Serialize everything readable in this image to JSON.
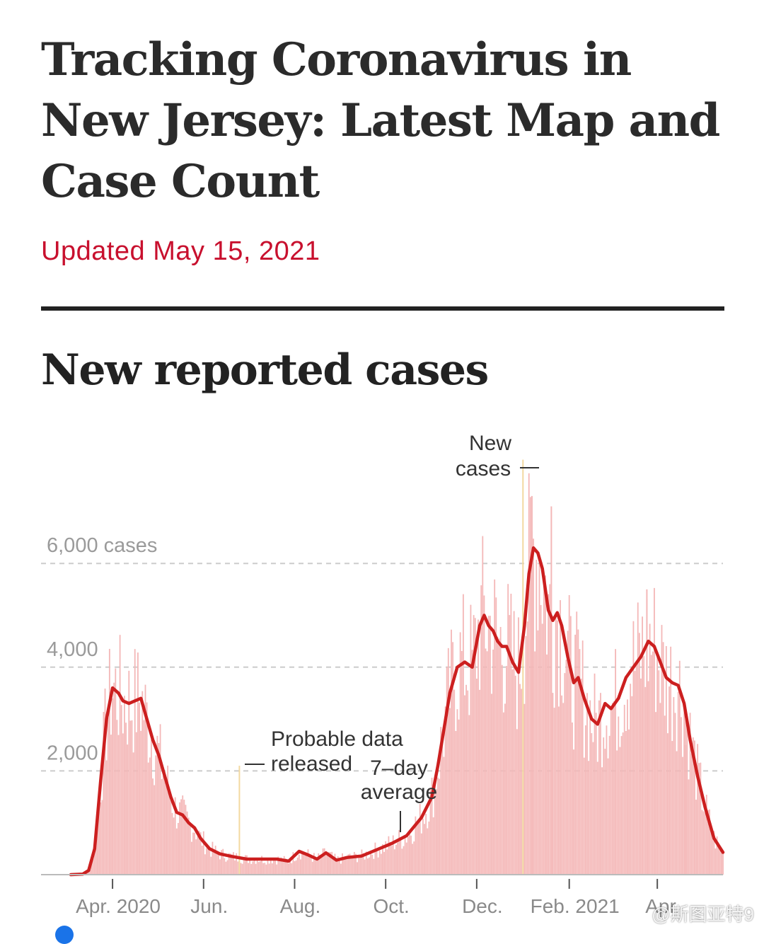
{
  "article": {
    "headline": "Tracking Coronavirus in New Jersey: Latest Map and Case Count",
    "updated": "Updated May 15, 2021"
  },
  "section": {
    "title": "New reported cases"
  },
  "watermark": "@斯图亚特9",
  "colors": {
    "headline": "#2b2b2b",
    "updated": "#c8102e",
    "average_line": "#cc1f1f",
    "bars": "#f4b7b7",
    "probable_marker": "#f2d9a0",
    "grid": "#cccccc",
    "tick_label": "#888888"
  },
  "chart_data": {
    "type": "bar",
    "title": "New reported cases",
    "y_unit_label": "cases",
    "ylim": [
      0,
      6500
    ],
    "y_ticks": [
      {
        "value": 2000,
        "label": "2,000"
      },
      {
        "value": 4000,
        "label": "4,000"
      },
      {
        "value": 6000,
        "label": "6,000 cases"
      }
    ],
    "x_ticks": [
      {
        "date": "2020-04-01",
        "label": "Apr. 2020"
      },
      {
        "date": "2020-06-01",
        "label": "Jun."
      },
      {
        "date": "2020-08-01",
        "label": "Aug."
      },
      {
        "date": "2020-10-01",
        "label": "Oct."
      },
      {
        "date": "2020-12-01",
        "label": "Dec."
      },
      {
        "date": "2021-02-01",
        "label": "Feb. 2021"
      },
      {
        "date": "2021-04-01",
        "label": "Apr."
      }
    ],
    "date_range": [
      "2020-03-04",
      "2021-05-15"
    ],
    "grid": true,
    "series": [
      {
        "name": "7-day average",
        "style": "line",
        "points": [
          [
            "2020-03-04",
            0
          ],
          [
            "2020-03-12",
            10
          ],
          [
            "2020-03-16",
            80
          ],
          [
            "2020-03-20",
            500
          ],
          [
            "2020-03-24",
            1800
          ],
          [
            "2020-03-28",
            3000
          ],
          [
            "2020-04-01",
            3600
          ],
          [
            "2020-04-05",
            3500
          ],
          [
            "2020-04-08",
            3350
          ],
          [
            "2020-04-12",
            3300
          ],
          [
            "2020-04-16",
            3350
          ],
          [
            "2020-04-20",
            3400
          ],
          [
            "2020-04-24",
            3000
          ],
          [
            "2020-04-28",
            2600
          ],
          [
            "2020-05-02",
            2300
          ],
          [
            "2020-05-06",
            1900
          ],
          [
            "2020-05-10",
            1500
          ],
          [
            "2020-05-14",
            1200
          ],
          [
            "2020-05-18",
            1150
          ],
          [
            "2020-05-22",
            1000
          ],
          [
            "2020-05-26",
            900
          ],
          [
            "2020-05-30",
            700
          ],
          [
            "2020-06-05",
            500
          ],
          [
            "2020-06-12",
            400
          ],
          [
            "2020-06-20",
            350
          ],
          [
            "2020-06-30",
            300
          ],
          [
            "2020-07-10",
            300
          ],
          [
            "2020-07-20",
            300
          ],
          [
            "2020-07-28",
            260
          ],
          [
            "2020-08-04",
            450
          ],
          [
            "2020-08-10",
            380
          ],
          [
            "2020-08-16",
            300
          ],
          [
            "2020-08-22",
            420
          ],
          [
            "2020-08-29",
            280
          ],
          [
            "2020-09-05",
            330
          ],
          [
            "2020-09-15",
            360
          ],
          [
            "2020-09-25",
            480
          ],
          [
            "2020-10-05",
            600
          ],
          [
            "2020-10-15",
            750
          ],
          [
            "2020-10-25",
            1100
          ],
          [
            "2020-11-01",
            1500
          ],
          [
            "2020-11-05",
            2100
          ],
          [
            "2020-11-09",
            2800
          ],
          [
            "2020-11-13",
            3500
          ],
          [
            "2020-11-18",
            4000
          ],
          [
            "2020-11-23",
            4100
          ],
          [
            "2020-11-28",
            4000
          ],
          [
            "2020-12-03",
            4800
          ],
          [
            "2020-12-06",
            5000
          ],
          [
            "2020-12-09",
            4800
          ],
          [
            "2020-12-12",
            4700
          ],
          [
            "2020-12-15",
            4500
          ],
          [
            "2020-12-18",
            4400
          ],
          [
            "2020-12-21",
            4400
          ],
          [
            "2020-12-25",
            4100
          ],
          [
            "2020-12-29",
            3900
          ],
          [
            "2021-01-02",
            4800
          ],
          [
            "2021-01-05",
            5800
          ],
          [
            "2021-01-08",
            6300
          ],
          [
            "2021-01-11",
            6200
          ],
          [
            "2021-01-14",
            5900
          ],
          [
            "2021-01-18",
            5100
          ],
          [
            "2021-01-21",
            4900
          ],
          [
            "2021-01-24",
            5050
          ],
          [
            "2021-01-27",
            4800
          ],
          [
            "2021-01-31",
            4200
          ],
          [
            "2021-02-04",
            3700
          ],
          [
            "2021-02-07",
            3800
          ],
          [
            "2021-02-11",
            3400
          ],
          [
            "2021-02-16",
            3000
          ],
          [
            "2021-02-20",
            2900
          ],
          [
            "2021-02-25",
            3300
          ],
          [
            "2021-03-01",
            3200
          ],
          [
            "2021-03-06",
            3400
          ],
          [
            "2021-03-11",
            3800
          ],
          [
            "2021-03-16",
            4000
          ],
          [
            "2021-03-21",
            4200
          ],
          [
            "2021-03-26",
            4500
          ],
          [
            "2021-03-30",
            4400
          ],
          [
            "2021-04-03",
            4100
          ],
          [
            "2021-04-07",
            3800
          ],
          [
            "2021-04-11",
            3700
          ],
          [
            "2021-04-15",
            3650
          ],
          [
            "2021-04-19",
            3300
          ],
          [
            "2021-04-23",
            2600
          ],
          [
            "2021-04-28",
            1900
          ],
          [
            "2021-05-03",
            1300
          ],
          [
            "2021-05-09",
            700
          ],
          [
            "2021-05-15",
            430
          ]
        ]
      },
      {
        "name": "New cases",
        "style": "daily-bars",
        "spikes": [
          [
            "2020-06-25",
            2100
          ],
          [
            "2021-01-01",
            8000
          ],
          [
            "2021-01-07",
            7300
          ],
          [
            "2021-01-20",
            7100
          ],
          [
            "2021-03-25",
            5500
          ],
          [
            "2021-04-20",
            2500
          ]
        ]
      }
    ],
    "annotations": [
      {
        "text_lines": [
          "New",
          "cases"
        ],
        "date": "2021-01-01",
        "value": 7900
      },
      {
        "text_lines": [
          "Probable data",
          "released"
        ],
        "date": "2020-06-25",
        "value": 2100
      },
      {
        "text_lines": [
          "7–day",
          "average"
        ],
        "date": "2020-10-08",
        "value": 1200
      }
    ]
  }
}
